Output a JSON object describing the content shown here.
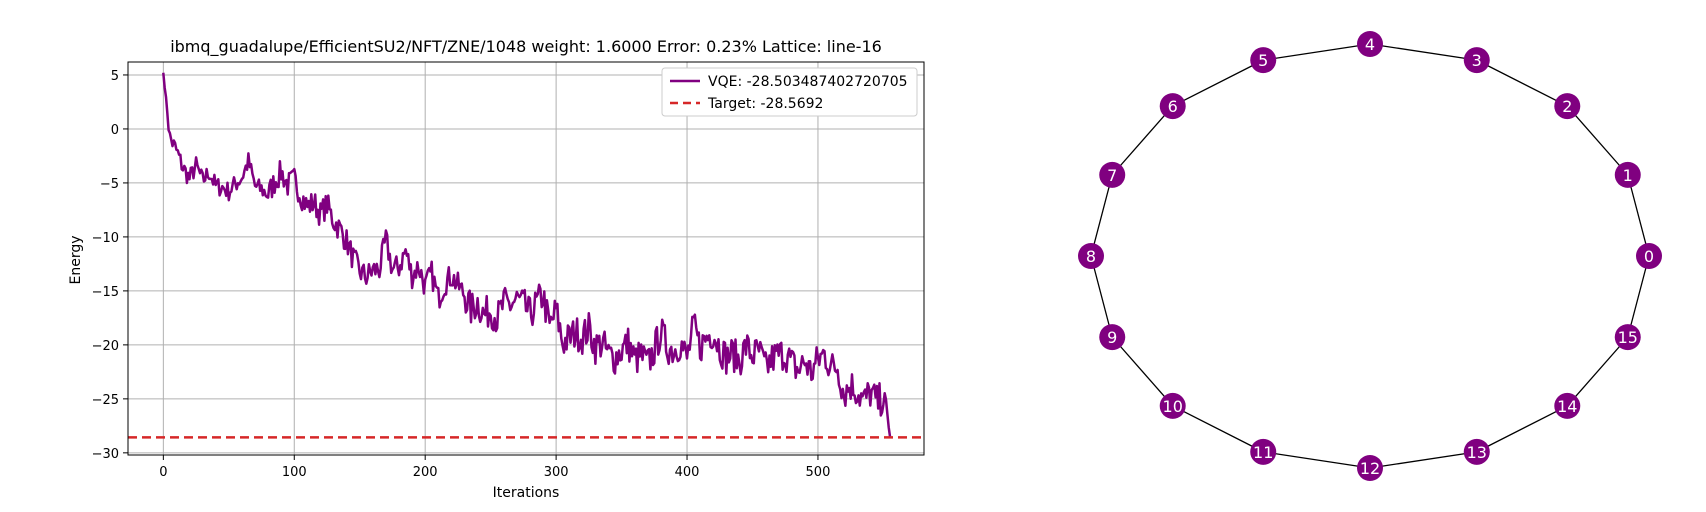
{
  "chart_data": [
    {
      "type": "line",
      "title": "ibmq_guadalupe/EfficientSU2/NFT/ZNE/1048 weight: 1.6000 Error: 0.23% Lattice: line-16",
      "xlabel": "Iterations",
      "ylabel": "Energy",
      "xlim": [
        -27,
        581
      ],
      "ylim": [
        -30.2,
        6.2
      ],
      "xticks": [
        0,
        100,
        200,
        300,
        400,
        500
      ],
      "yticks": [
        5,
        0,
        -5,
        -10,
        -15,
        -20,
        -25,
        -30
      ],
      "grid": true,
      "legend_position": "upper right",
      "series": [
        {
          "name": "VQE: -28.503487402720705",
          "color": "#800080",
          "style": "solid",
          "x": [
            0,
            5,
            10,
            15,
            20,
            25,
            30,
            35,
            40,
            45,
            50,
            55,
            60,
            65,
            70,
            75,
            80,
            85,
            90,
            95,
            100,
            105,
            110,
            115,
            120,
            125,
            130,
            135,
            140,
            145,
            150,
            155,
            160,
            165,
            170,
            175,
            180,
            185,
            190,
            195,
            200,
            205,
            210,
            215,
            220,
            225,
            230,
            235,
            240,
            245,
            250,
            255,
            260,
            265,
            270,
            275,
            280,
            285,
            290,
            295,
            300,
            305,
            310,
            315,
            320,
            325,
            330,
            335,
            340,
            345,
            350,
            355,
            360,
            365,
            370,
            375,
            380,
            385,
            390,
            395,
            400,
            405,
            410,
            415,
            420,
            425,
            430,
            435,
            440,
            445,
            450,
            455,
            460,
            465,
            470,
            475,
            480,
            485,
            490,
            495,
            500,
            505,
            510,
            515,
            520,
            525,
            530,
            535,
            540,
            545,
            550,
            555
          ],
          "y": [
            5.2,
            -0.8,
            -2.0,
            -3.6,
            -4.6,
            -3.4,
            -4.8,
            -4.0,
            -5.3,
            -5.4,
            -5.8,
            -5.1,
            -4.5,
            -3.0,
            -5.3,
            -5.6,
            -6.1,
            -4.9,
            -4.0,
            -5.2,
            -4.7,
            -6.1,
            -7.2,
            -6.8,
            -7.9,
            -7.0,
            -8.5,
            -9.3,
            -10.4,
            -12.0,
            -13.2,
            -13.7,
            -13.1,
            -13.0,
            -10.3,
            -13.0,
            -12.8,
            -11.3,
            -13.6,
            -12.7,
            -14.6,
            -13.4,
            -15.7,
            -14.3,
            -13.6,
            -14.5,
            -15.3,
            -16.8,
            -16.0,
            -17.3,
            -16.7,
            -17.6,
            -16.2,
            -16.3,
            -15.8,
            -16.3,
            -17.2,
            -16.2,
            -15.4,
            -18.4,
            -16.8,
            -19.8,
            -19.4,
            -18.8,
            -19.3,
            -18.5,
            -20.2,
            -19.8,
            -20.9,
            -21.2,
            -20.5,
            -19.8,
            -21.4,
            -21.0,
            -21.8,
            -20.5,
            -18.8,
            -20.2,
            -20.5,
            -19.8,
            -21.3,
            -18.3,
            -20.2,
            -19.3,
            -18.8,
            -20.2,
            -21.2,
            -20.8,
            -21.5,
            -20.1,
            -21.0,
            -20.6,
            -22.2,
            -21.3,
            -20.9,
            -20.8,
            -21.7,
            -22.4,
            -21.5,
            -22.6,
            -21.4,
            -20.8,
            -22.1,
            -22.0,
            -24.5,
            -23.7,
            -24.3,
            -25.2,
            -24.4,
            -25.3,
            -24.9,
            -28.5
          ],
          "points": 556
        },
        {
          "name": "Target: -28.5692",
          "color": "#d62728",
          "style": "dashed",
          "y": -28.5692
        }
      ]
    },
    {
      "type": "graph",
      "nodes": [
        "0",
        "1",
        "2",
        "3",
        "4",
        "5",
        "6",
        "7",
        "8",
        "9",
        "10",
        "11",
        "12",
        "13",
        "14",
        "15"
      ],
      "edges": [
        [
          0,
          1
        ],
        [
          1,
          2
        ],
        [
          2,
          3
        ],
        [
          3,
          4
        ],
        [
          4,
          5
        ],
        [
          5,
          6
        ],
        [
          6,
          7
        ],
        [
          7,
          8
        ],
        [
          8,
          9
        ],
        [
          9,
          10
        ],
        [
          10,
          11
        ],
        [
          11,
          12
        ],
        [
          12,
          13
        ],
        [
          13,
          14
        ],
        [
          14,
          15
        ],
        [
          15,
          0
        ]
      ],
      "node_color": "#800080",
      "label_color": "#ffffff",
      "edge_color": "#000000"
    }
  ]
}
